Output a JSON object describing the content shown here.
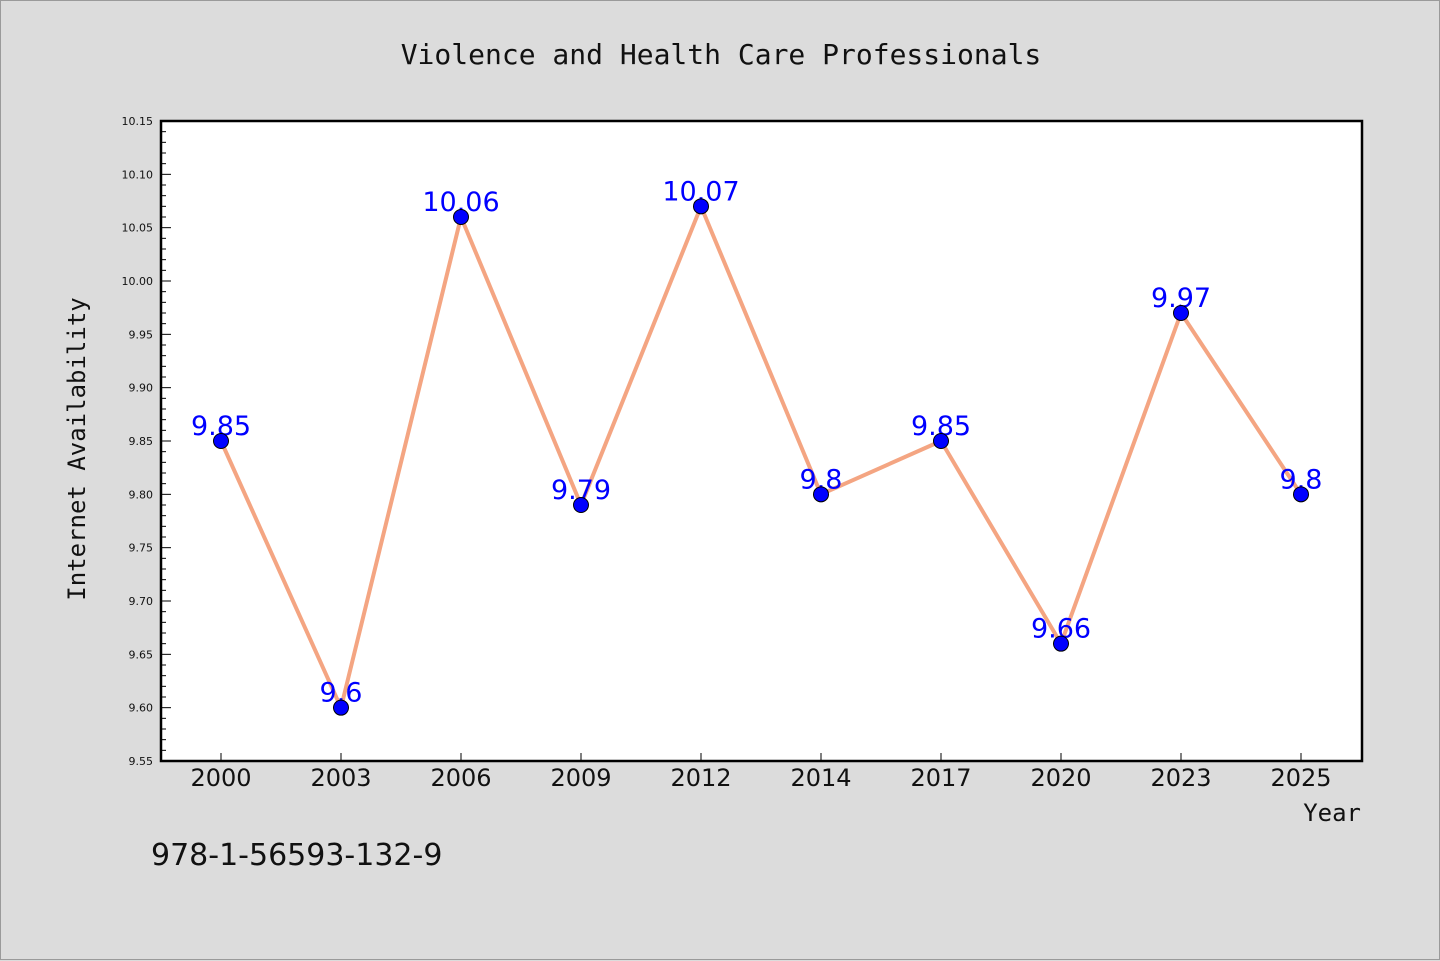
{
  "chart_data": {
    "type": "line",
    "title": "Violence and Health Care Professionals",
    "xlabel": "Year",
    "ylabel": "Internet Availability",
    "categories": [
      "2000",
      "2003",
      "2006",
      "2009",
      "2012",
      "2014",
      "2017",
      "2020",
      "2023",
      "2025"
    ],
    "values": [
      9.85,
      9.6,
      10.06,
      9.79,
      10.07,
      9.8,
      9.85,
      9.66,
      9.97,
      9.8
    ],
    "data_labels": [
      "9.85",
      "9.6",
      "10.06",
      "9.79",
      "10.07",
      "9.8",
      "9.85",
      "9.66",
      "9.97",
      "9.8"
    ],
    "ylim": [
      9.55,
      10.15
    ],
    "y_ticks": [
      "9.55",
      "9.60",
      "9.65",
      "9.70",
      "9.75",
      "9.80",
      "9.85",
      "9.90",
      "9.95",
      "10.00",
      "10.05",
      "10.10",
      "10.15"
    ],
    "grid": false,
    "line_color": "#f4a582",
    "marker_color": "#0000ff",
    "label_color": "#0000ff"
  },
  "footer": {
    "isbn": "978-1-56593-132-9"
  }
}
